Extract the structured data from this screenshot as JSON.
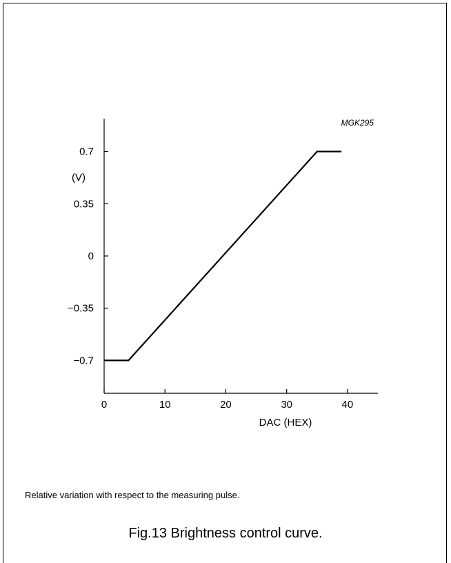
{
  "figure": {
    "code": "MGK295",
    "note": "Relative variation with respect to the measuring pulse.",
    "caption": "Fig.13  Brightness control curve."
  },
  "chart_data": {
    "type": "line",
    "title": "",
    "xlabel": "DAC (HEX)",
    "ylabel": "(V)",
    "xlim": [
      0,
      45
    ],
    "ylim": [
      -0.92,
      0.92
    ],
    "x_ticks": [
      0,
      10,
      20,
      30,
      40
    ],
    "x_tick_labels": [
      "0",
      "10",
      "20",
      "30",
      "40"
    ],
    "y_ticks": [
      0.7,
      0.35,
      0,
      -0.35,
      -0.7
    ],
    "y_tick_labels": [
      "0.7",
      "0.35",
      "0",
      "−0.35",
      "−0.7"
    ],
    "grid": false,
    "series": [
      {
        "x": [
          0,
          4,
          35,
          39
        ],
        "y": [
          -0.7,
          -0.7,
          0.7,
          0.7
        ]
      }
    ]
  }
}
